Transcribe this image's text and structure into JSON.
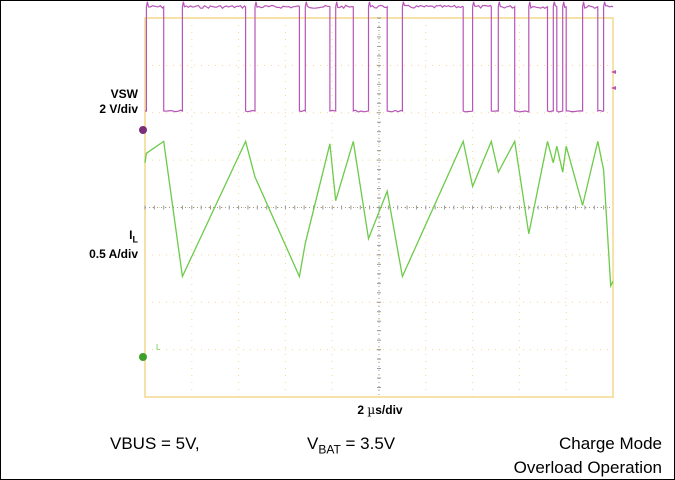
{
  "chart_data": {
    "type": "line",
    "title": "",
    "x": {
      "label": "2 µs/div",
      "divisions": 10,
      "range": [
        0,
        20
      ],
      "unit": "µs"
    },
    "channels": [
      {
        "name": "VSW",
        "scale": "2 V/div",
        "color": "#b855b8",
        "levels_div_above_marker": {
          "high": 2.6,
          "low": 0.4
        },
        "segments": [
          {
            "state": "low",
            "t": [
              0.0,
              0.06
            ]
          },
          {
            "state": "high",
            "t": [
              0.06,
              0.8
            ]
          },
          {
            "state": "low",
            "t": [
              0.8,
              1.6
            ]
          },
          {
            "state": "high",
            "t": [
              1.6,
              4.3
            ]
          },
          {
            "state": "low",
            "t": [
              4.3,
              4.7
            ]
          },
          {
            "state": "high",
            "t": [
              4.7,
              6.6
            ]
          },
          {
            "state": "low",
            "t": [
              6.6,
              6.85
            ]
          },
          {
            "state": "high",
            "t": [
              6.85,
              7.9
            ]
          },
          {
            "state": "low",
            "t": [
              7.9,
              8.15
            ]
          },
          {
            "state": "high",
            "t": [
              8.15,
              8.9
            ]
          },
          {
            "state": "low",
            "t": [
              8.9,
              9.55
            ]
          },
          {
            "state": "high",
            "t": [
              9.55,
              10.35
            ]
          },
          {
            "state": "low",
            "t": [
              10.35,
              11.0
            ]
          },
          {
            "state": "high",
            "t": [
              11.0,
              13.6
            ]
          },
          {
            "state": "low",
            "t": [
              13.6,
              14.0
            ]
          },
          {
            "state": "high",
            "t": [
              14.0,
              14.8
            ]
          },
          {
            "state": "low",
            "t": [
              14.8,
              15.1
            ]
          },
          {
            "state": "high",
            "t": [
              15.1,
              15.8
            ]
          },
          {
            "state": "low",
            "t": [
              15.8,
              16.4
            ]
          },
          {
            "state": "high",
            "t": [
              16.4,
              17.2
            ]
          },
          {
            "state": "low",
            "t": [
              17.2,
              17.45
            ]
          },
          {
            "state": "high",
            "t": [
              17.45,
              17.6
            ]
          },
          {
            "state": "low",
            "t": [
              17.6,
              17.85
            ]
          },
          {
            "state": "high",
            "t": [
              17.85,
              18.0
            ]
          },
          {
            "state": "low",
            "t": [
              18.0,
              18.7
            ]
          },
          {
            "state": "high",
            "t": [
              18.7,
              19.35
            ]
          },
          {
            "state": "low",
            "t": [
              19.35,
              19.6
            ]
          },
          {
            "state": "high",
            "t": [
              19.6,
              20.0
            ]
          }
        ]
      },
      {
        "name": "I_L",
        "scale": "0.5 A/div",
        "color": "#6ccb4a",
        "waveform_points_div_above_marker": [
          [
            0.0,
            4.1
          ],
          [
            0.06,
            4.3
          ],
          [
            0.8,
            4.55
          ],
          [
            1.6,
            1.7
          ],
          [
            4.3,
            4.55
          ],
          [
            4.7,
            3.8
          ],
          [
            6.6,
            1.7
          ],
          [
            6.85,
            2.4
          ],
          [
            7.9,
            4.5
          ],
          [
            8.15,
            3.3
          ],
          [
            8.9,
            4.55
          ],
          [
            9.55,
            2.5
          ],
          [
            10.35,
            3.5
          ],
          [
            11.0,
            1.7
          ],
          [
            13.6,
            4.55
          ],
          [
            14.0,
            3.6
          ],
          [
            14.8,
            4.55
          ],
          [
            15.1,
            3.9
          ],
          [
            15.8,
            4.55
          ],
          [
            16.4,
            2.6
          ],
          [
            17.2,
            4.55
          ],
          [
            17.45,
            4.1
          ],
          [
            17.6,
            4.45
          ],
          [
            17.85,
            3.9
          ],
          [
            18.0,
            4.45
          ],
          [
            18.7,
            3.2
          ],
          [
            19.35,
            4.55
          ],
          [
            19.6,
            3.95
          ],
          [
            19.9,
            1.5
          ],
          [
            20.0,
            1.6
          ]
        ]
      }
    ],
    "grid": true,
    "marker_glyph": "L"
  },
  "labels": {
    "vsw_name": "VSW",
    "vsw_scale": "2 V/div",
    "il_name": "I",
    "il_sub": "L",
    "il_scale": "0.5 A/div",
    "timebase_num": "2 ",
    "timebase_mu": "µ",
    "timebase_unit": "s/div"
  },
  "conditions": {
    "vbus": "VBUS = 5V,",
    "vbat_prefix": "V",
    "vbat_sub": "BAT",
    "vbat_suffix": " = 3.5V",
    "mode_line1": "Charge Mode",
    "mode_line2": "Overload Operation"
  },
  "colors": {
    "background": "#ffffff",
    "grid": "#f4d88c",
    "crosshair": "#999999",
    "vsw": "#b855b8",
    "il": "#6ccb4a",
    "marker_vsw": "#7a2f7a",
    "marker_il": "#3f9f2c"
  }
}
